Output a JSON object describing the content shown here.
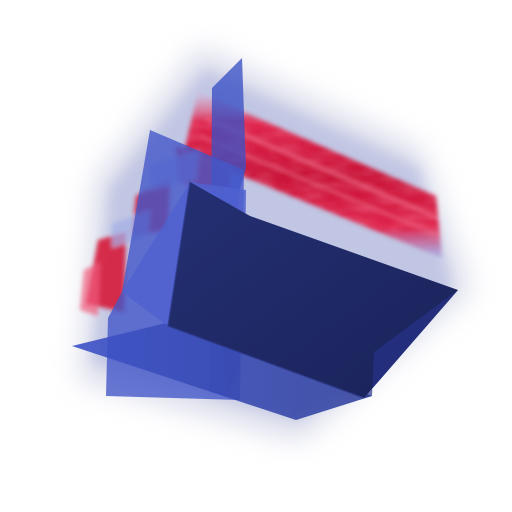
{
  "render": {
    "type": "volume-rendering-with-slice-planes",
    "colors": {
      "background": "#ffffff",
      "halo": "#b4b8d8",
      "hot": "#d4153a",
      "hot_light": "#f05a78",
      "cool": "#8a9ee8",
      "plane_blue": "#3a4fc4",
      "plane_light": "#6677dd",
      "plane_dark": "#1e2a66",
      "plane_darker": "#172052"
    }
  }
}
